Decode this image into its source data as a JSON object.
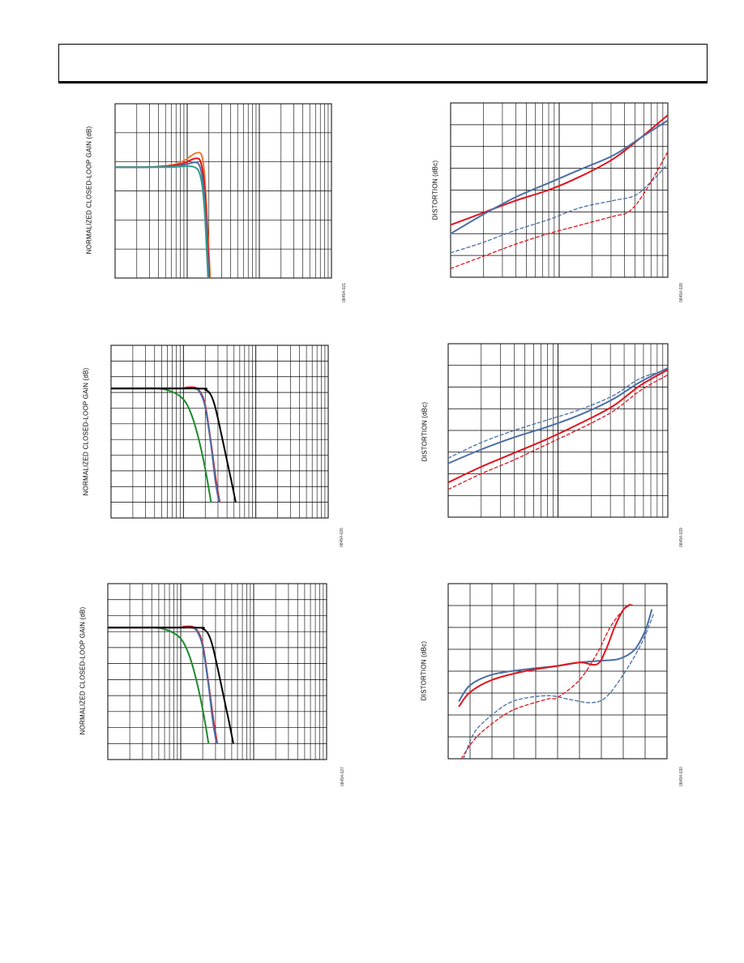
{
  "page": {
    "header": ""
  },
  "colors": {
    "orange": "#f07a34",
    "red": "#e0141e",
    "blue": "#4a6fa5",
    "teal": "#3a9a8a",
    "green": "#1e8a2e",
    "black": "#000000",
    "grid": "#000000"
  },
  "chart_data": [
    {
      "id": "fig21",
      "type": "line",
      "ylabel": "NORMALIZED CLOSED-LOOP GAIN (dB)",
      "figure_number": "08454-021",
      "x_scale": "log",
      "x_decades": 3,
      "y_divisions": 6,
      "series": [
        {
          "color": "orange",
          "x": [
            0.0,
            0.45,
            0.8,
            0.95,
            1.05,
            1.13,
            1.2,
            1.24,
            1.28,
            1.34
          ],
          "y": [
            1.0,
            1.0,
            1.03,
            1.08,
            1.14,
            1.18,
            1.15,
            0.9,
            0.3,
            -0.8
          ]
        },
        {
          "color": "red",
          "x": [
            0.0,
            0.45,
            0.8,
            0.95,
            1.05,
            1.12,
            1.18,
            1.23,
            1.27,
            1.33
          ],
          "y": [
            1.0,
            1.0,
            1.02,
            1.05,
            1.09,
            1.11,
            1.08,
            0.85,
            0.3,
            -0.8
          ]
        },
        {
          "color": "blue",
          "x": [
            0.0,
            0.45,
            0.8,
            0.95,
            1.05,
            1.11,
            1.17,
            1.22,
            1.26,
            1.32
          ],
          "y": [
            1.0,
            1.0,
            1.01,
            1.03,
            1.05,
            1.06,
            1.02,
            0.8,
            0.3,
            -0.8
          ]
        },
        {
          "color": "teal",
          "x": [
            0.0,
            0.45,
            0.8,
            0.95,
            1.05,
            1.1,
            1.16,
            1.21,
            1.25,
            1.31
          ],
          "y": [
            1.0,
            1.0,
            1.0,
            1.01,
            1.01,
            1.0,
            0.95,
            0.75,
            0.3,
            -0.8
          ]
        }
      ]
    },
    {
      "id": "fig26",
      "type": "line",
      "ylabel": "NORMALIZED CLOSED-LOOP GAIN (dB)",
      "figure_number": "08454-026",
      "x_scale": "log",
      "x_decades": 3,
      "y_divisions": 11,
      "series": [
        {
          "color": "green",
          "x": [
            0.0,
            0.6,
            0.8,
            0.95,
            1.05,
            1.15,
            1.25,
            1.33,
            1.38
          ],
          "y": [
            1.0,
            1.0,
            0.98,
            0.93,
            0.85,
            0.68,
            0.42,
            0.15,
            -0.05
          ]
        },
        {
          "color": "red",
          "x": [
            0.0,
            0.9,
            1.05,
            1.15,
            1.22,
            1.3,
            1.38,
            1.45,
            1.5
          ],
          "y": [
            1.0,
            1.0,
            1.01,
            1.01,
            0.98,
            0.85,
            0.5,
            0.15,
            -0.05
          ]
        },
        {
          "color": "blue",
          "x": [
            0.0,
            0.9,
            1.05,
            1.15,
            1.22,
            1.3,
            1.38,
            1.44,
            1.49
          ],
          "y": [
            1.0,
            1.0,
            1.0,
            1.0,
            0.97,
            0.83,
            0.48,
            0.15,
            -0.05
          ]
        },
        {
          "color": "black",
          "x": [
            0.0,
            1.2,
            1.3,
            1.37,
            1.43,
            1.5,
            1.58,
            1.66,
            1.72
          ],
          "y": [
            1.0,
            1.0,
            0.99,
            0.95,
            0.85,
            0.65,
            0.4,
            0.15,
            -0.05
          ]
        }
      ]
    },
    {
      "id": "fig27",
      "type": "line",
      "ylabel": "NORMALIZED CLOSED-LOOP GAIN (dB)",
      "figure_number": "08454-027",
      "x_scale": "log",
      "x_decades": 3,
      "y_divisions": 11,
      "series": [
        {
          "color": "green",
          "x": [
            0.0,
            0.6,
            0.8,
            0.95,
            1.05,
            1.15,
            1.25,
            1.33,
            1.38
          ],
          "y": [
            1.0,
            1.0,
            0.98,
            0.93,
            0.85,
            0.68,
            0.42,
            0.15,
            -0.05
          ]
        },
        {
          "color": "red",
          "x": [
            0.0,
            0.9,
            1.05,
            1.15,
            1.22,
            1.3,
            1.38,
            1.45,
            1.5
          ],
          "y": [
            1.0,
            1.0,
            1.01,
            1.01,
            0.98,
            0.85,
            0.5,
            0.15,
            -0.05
          ]
        },
        {
          "color": "blue",
          "x": [
            0.0,
            0.9,
            1.05,
            1.15,
            1.22,
            1.3,
            1.38,
            1.44,
            1.49
          ],
          "y": [
            1.0,
            1.0,
            1.0,
            1.0,
            0.97,
            0.83,
            0.48,
            0.15,
            -0.05
          ]
        },
        {
          "color": "black",
          "x": [
            0.0,
            1.2,
            1.3,
            1.37,
            1.43,
            1.5,
            1.58,
            1.66,
            1.72
          ],
          "y": [
            1.0,
            1.0,
            0.99,
            0.95,
            0.85,
            0.65,
            0.4,
            0.15,
            -0.05
          ]
        }
      ]
    },
    {
      "id": "fig28",
      "type": "line",
      "ylabel": "DISTORTION (dBc)",
      "figure_number": "08454-028",
      "x_scale": "log",
      "x_decades": 2,
      "y_divisions": 8,
      "series": [
        {
          "color": "red",
          "dashed": false,
          "x": [
            0.0,
            0.3,
            0.6,
            0.9,
            1.2,
            1.5,
            1.75,
            2.0
          ],
          "y": [
            0.3,
            0.37,
            0.44,
            0.5,
            0.58,
            0.68,
            0.8,
            0.93
          ]
        },
        {
          "color": "blue",
          "dashed": false,
          "x": [
            0.0,
            0.3,
            0.6,
            0.9,
            1.2,
            1.5,
            1.75,
            2.0
          ],
          "y": [
            0.25,
            0.36,
            0.46,
            0.54,
            0.62,
            0.7,
            0.8,
            0.9
          ]
        },
        {
          "color": "blue",
          "dashed": true,
          "x": [
            0.0,
            0.3,
            0.6,
            0.9,
            1.2,
            1.5,
            1.7,
            1.85,
            2.0
          ],
          "y": [
            0.14,
            0.2,
            0.27,
            0.33,
            0.4,
            0.44,
            0.47,
            0.55,
            0.65
          ]
        },
        {
          "color": "red",
          "dashed": true,
          "x": [
            0.0,
            0.3,
            0.6,
            0.9,
            1.2,
            1.5,
            1.65,
            1.8,
            2.0
          ],
          "y": [
            0.05,
            0.12,
            0.19,
            0.25,
            0.3,
            0.35,
            0.38,
            0.5,
            0.72
          ]
        }
      ]
    },
    {
      "id": "fig29",
      "type": "line",
      "ylabel": "DISTORTION (dBc)",
      "figure_number": "08454-029",
      "x_scale": "log",
      "x_decades": 2,
      "y_divisions": 8,
      "series": [
        {
          "color": "blue",
          "dashed": true,
          "x": [
            0.0,
            0.3,
            0.6,
            0.9,
            1.2,
            1.5,
            1.75,
            2.0
          ],
          "y": [
            0.34,
            0.43,
            0.5,
            0.56,
            0.62,
            0.7,
            0.8,
            0.85
          ]
        },
        {
          "color": "blue",
          "dashed": false,
          "x": [
            0.0,
            0.3,
            0.6,
            0.9,
            1.2,
            1.5,
            1.75,
            2.0
          ],
          "y": [
            0.31,
            0.39,
            0.46,
            0.52,
            0.59,
            0.68,
            0.78,
            0.86
          ]
        },
        {
          "color": "red",
          "dashed": false,
          "x": [
            0.0,
            0.3,
            0.6,
            0.9,
            1.2,
            1.5,
            1.75,
            2.0
          ],
          "y": [
            0.2,
            0.29,
            0.37,
            0.45,
            0.54,
            0.64,
            0.76,
            0.85
          ]
        },
        {
          "color": "red",
          "dashed": true,
          "x": [
            0.0,
            0.3,
            0.6,
            0.9,
            1.2,
            1.5,
            1.75,
            2.0
          ],
          "y": [
            0.16,
            0.25,
            0.33,
            0.42,
            0.51,
            0.61,
            0.73,
            0.82
          ]
        }
      ]
    },
    {
      "id": "fig30",
      "type": "line",
      "ylabel": "DISTORTION (dBc)",
      "figure_number": "08454-030",
      "x_scale": "linear",
      "x_divisions": 10,
      "y_divisions": 8,
      "series": [
        {
          "color": "blue",
          "dashed": false,
          "x": [
            0.05,
            0.1,
            0.2,
            0.35,
            0.5,
            0.6,
            0.7,
            0.78,
            0.85,
            0.9,
            0.93
          ],
          "y": [
            0.33,
            0.42,
            0.48,
            0.51,
            0.53,
            0.55,
            0.56,
            0.57,
            0.62,
            0.73,
            0.85
          ]
        },
        {
          "color": "red",
          "dashed": false,
          "x": [
            0.05,
            0.1,
            0.2,
            0.35,
            0.5,
            0.6,
            0.68,
            0.72,
            0.76,
            0.8,
            0.83
          ],
          "y": [
            0.3,
            0.38,
            0.45,
            0.5,
            0.53,
            0.55,
            0.54,
            0.62,
            0.75,
            0.85,
            0.88
          ]
        },
        {
          "color": "blue",
          "dashed": true,
          "x": [
            0.07,
            0.12,
            0.2,
            0.3,
            0.45,
            0.55,
            0.65,
            0.72,
            0.8,
            0.88,
            0.94
          ],
          "y": [
            0.0,
            0.15,
            0.25,
            0.33,
            0.36,
            0.34,
            0.32,
            0.35,
            0.48,
            0.65,
            0.83
          ]
        },
        {
          "color": "red",
          "dashed": true,
          "x": [
            0.06,
            0.12,
            0.2,
            0.3,
            0.45,
            0.5,
            0.6,
            0.68,
            0.74,
            0.8,
            0.84
          ],
          "y": [
            0.0,
            0.11,
            0.2,
            0.28,
            0.34,
            0.35,
            0.45,
            0.6,
            0.75,
            0.85,
            0.88
          ]
        }
      ]
    }
  ]
}
